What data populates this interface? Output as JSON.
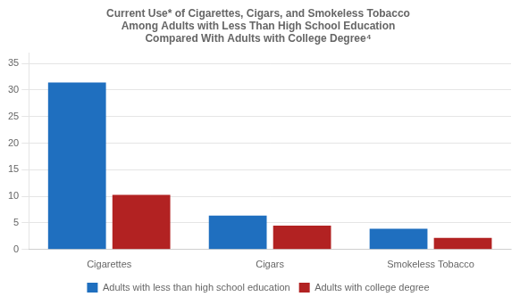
{
  "chart_data": {
    "type": "bar",
    "title": "Current Use* of Cigarettes, Cigars, and Smokeless Tobacco\nAmong Adults with Less Than High School Education\nCompared With Adults with College Degree⁴",
    "categories": [
      "Cigarettes",
      "Cigars",
      "Smokeless Tobacco"
    ],
    "series": [
      {
        "name": "Adults with less than high school education",
        "color": "#1F6FBF",
        "values": [
          31.4,
          6.4,
          3.9
        ]
      },
      {
        "name": "Adults with college degree",
        "color": "#B22222",
        "values": [
          10.3,
          4.5,
          2.2
        ]
      }
    ],
    "ylim": [
      0,
      37
    ],
    "yticks": [
      0,
      5,
      10,
      15,
      20,
      25,
      30,
      35
    ],
    "grid": true,
    "legend": "bottom"
  }
}
